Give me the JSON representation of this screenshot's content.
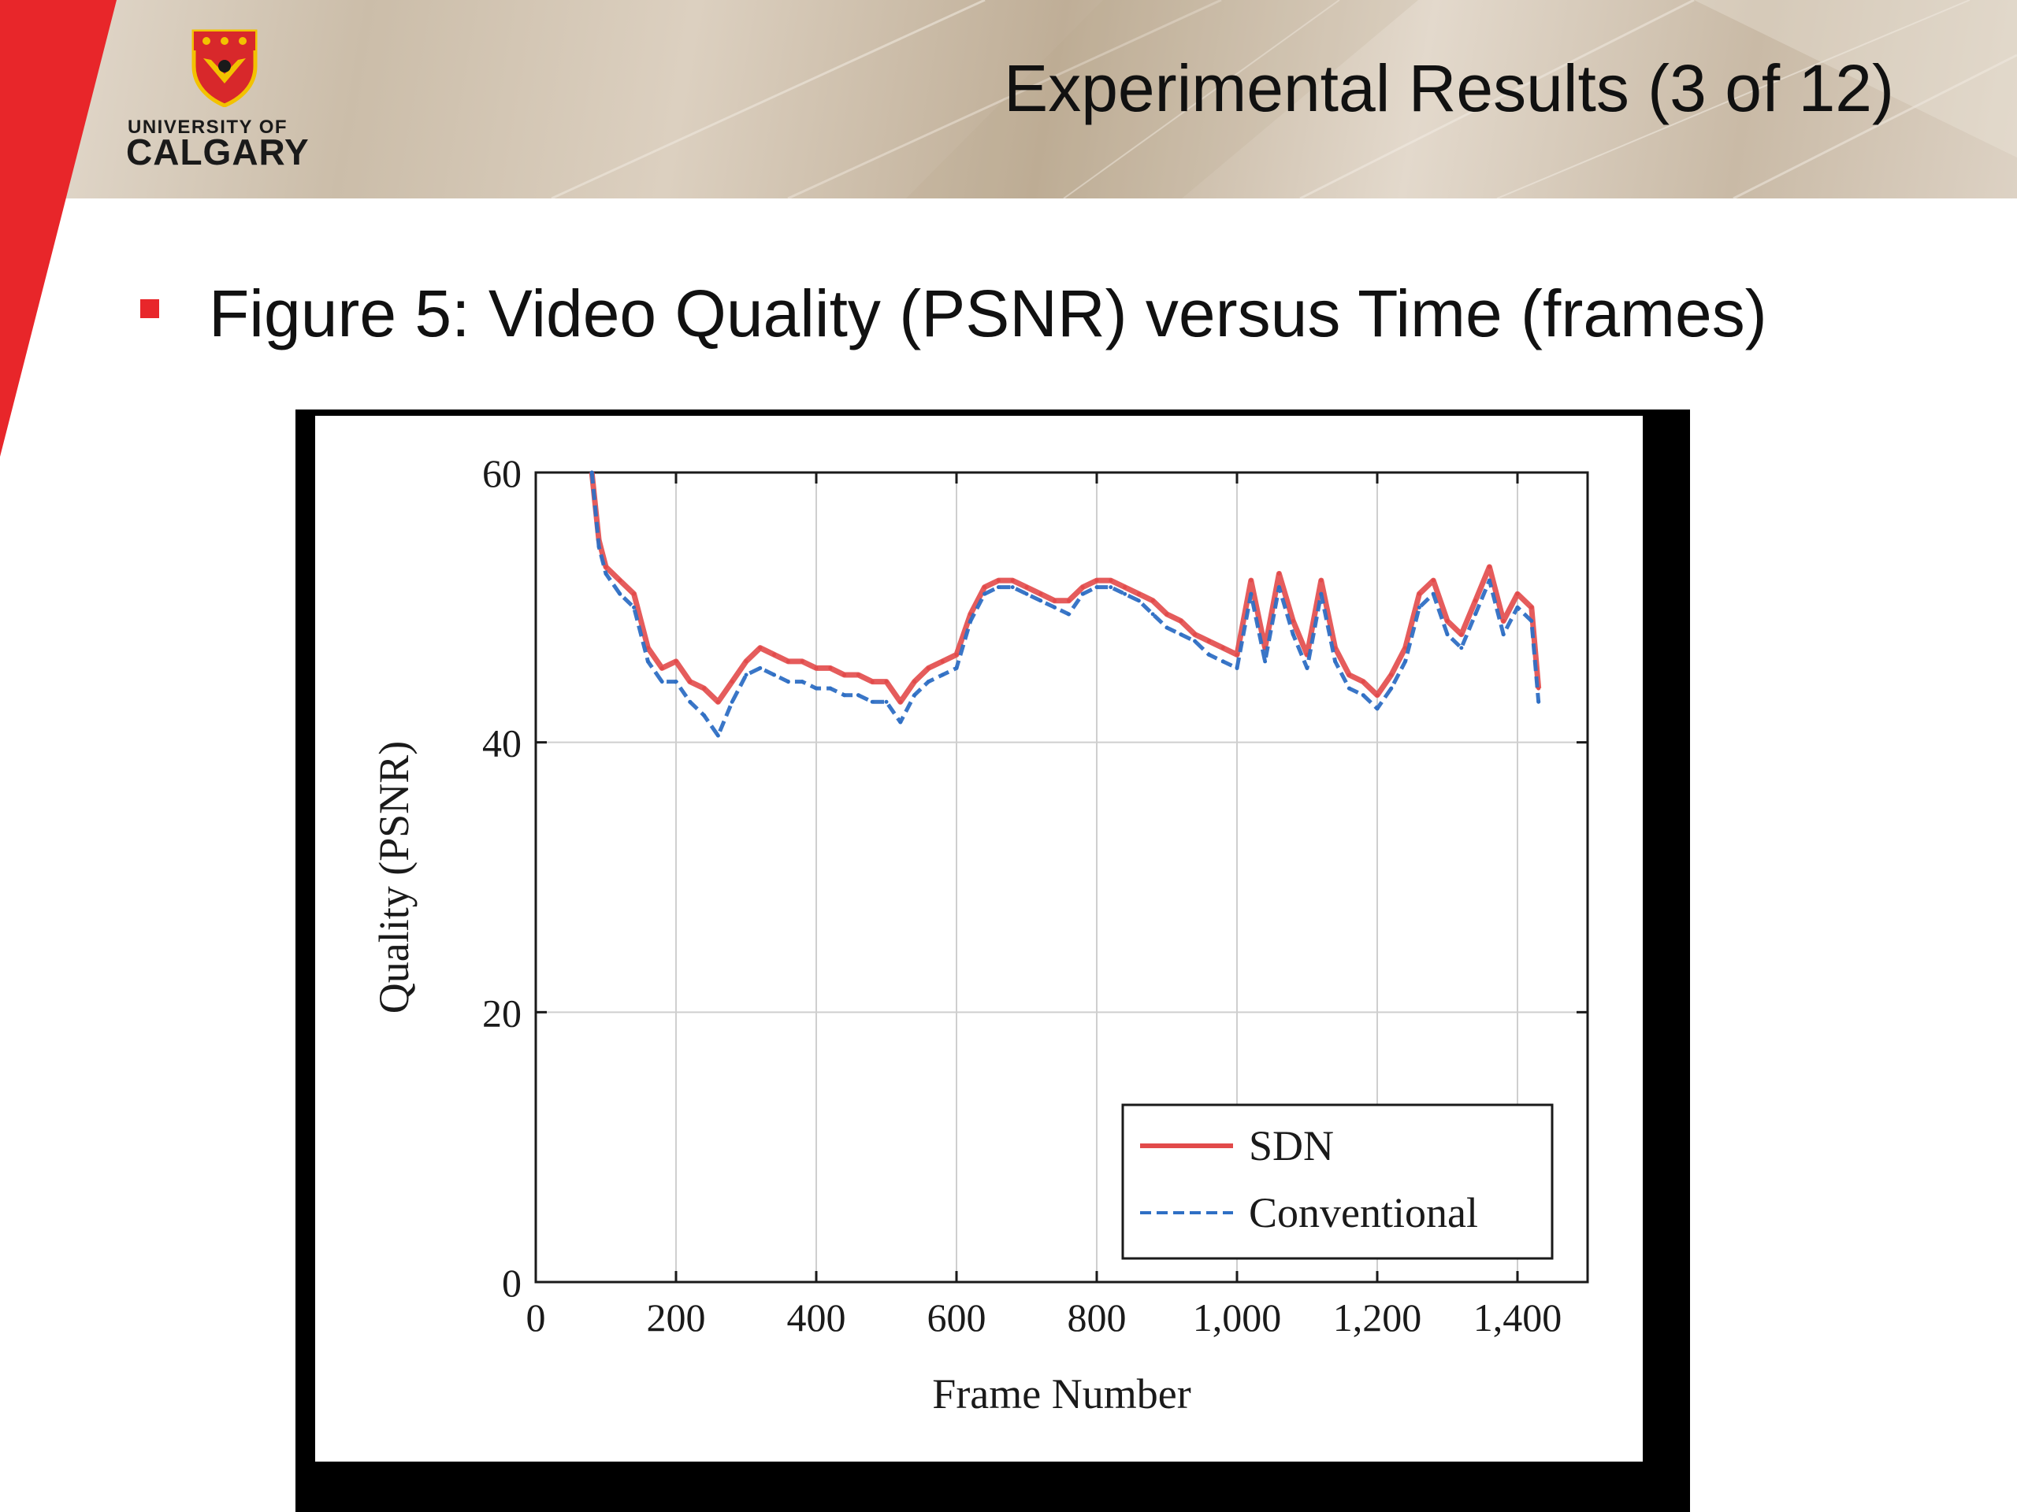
{
  "header": {
    "logo_line1": "UNIVERSITY OF",
    "logo_line2": "CALGARY",
    "title": "Experimental Results (3 of 12)"
  },
  "bullet": {
    "text": "Figure 5: Video Quality (PSNR) versus Time (frames)"
  },
  "colors": {
    "accent_red": "#e8262a",
    "sdn_series": "#e24a4a",
    "conventional_series": "#2f6fc4"
  },
  "chart_data": {
    "type": "line",
    "title": "",
    "xlabel": "Frame Number",
    "ylabel": "Quality (PSNR)",
    "xlim": [
      0,
      1500
    ],
    "ylim": [
      0,
      60
    ],
    "x_ticks": [
      0,
      200,
      400,
      600,
      800,
      1000,
      1200,
      1400
    ],
    "x_tick_labels": [
      "0",
      "200",
      "400",
      "600",
      "800",
      "1,000",
      "1,200",
      "1,400"
    ],
    "y_ticks": [
      0,
      20,
      40,
      60
    ],
    "y_tick_labels": [
      "0",
      "20",
      "40",
      "60"
    ],
    "grid": true,
    "legend_position": "bottom-right",
    "series": [
      {
        "name": "SDN",
        "style": "solid",
        "color": "#e24a4a",
        "x": [
          80,
          90,
          100,
          120,
          140,
          160,
          180,
          200,
          220,
          240,
          260,
          280,
          300,
          320,
          340,
          360,
          380,
          400,
          420,
          440,
          460,
          480,
          500,
          520,
          540,
          560,
          580,
          600,
          620,
          640,
          660,
          680,
          700,
          720,
          740,
          760,
          780,
          800,
          820,
          840,
          860,
          880,
          900,
          920,
          940,
          960,
          980,
          1000,
          1020,
          1040,
          1060,
          1080,
          1100,
          1120,
          1140,
          1160,
          1180,
          1200,
          1220,
          1240,
          1260,
          1280,
          1300,
          1320,
          1340,
          1360,
          1380,
          1400,
          1420,
          1430
        ],
        "y": [
          60,
          55,
          53,
          52,
          51,
          47,
          45.5,
          46,
          44.5,
          44,
          43,
          44.5,
          46,
          47,
          46.5,
          46,
          46,
          45.5,
          45.5,
          45,
          45,
          44.5,
          44.5,
          43,
          44.5,
          45.5,
          46,
          46.5,
          49.5,
          51.5,
          52,
          52,
          51.5,
          51,
          50.5,
          50.5,
          51.5,
          52,
          52,
          51.5,
          51,
          50.5,
          49.5,
          49,
          48,
          47.5,
          47,
          46.5,
          52,
          47,
          52.5,
          49,
          46.5,
          52,
          47,
          45,
          44.5,
          43.5,
          45,
          47,
          51,
          52,
          49,
          48,
          50.5,
          53,
          49,
          51,
          50,
          44
        ]
      },
      {
        "name": "Conventional",
        "style": "dashed",
        "color": "#2f6fc4",
        "x": [
          80,
          90,
          100,
          120,
          140,
          160,
          180,
          200,
          220,
          240,
          260,
          280,
          300,
          320,
          340,
          360,
          380,
          400,
          420,
          440,
          460,
          480,
          500,
          520,
          540,
          560,
          580,
          600,
          620,
          640,
          660,
          680,
          700,
          720,
          740,
          760,
          780,
          800,
          820,
          840,
          860,
          880,
          900,
          920,
          940,
          960,
          980,
          1000,
          1020,
          1040,
          1060,
          1080,
          1100,
          1120,
          1140,
          1160,
          1180,
          1200,
          1220,
          1240,
          1260,
          1280,
          1300,
          1320,
          1340,
          1360,
          1380,
          1400,
          1420,
          1430
        ],
        "y": [
          60,
          54.5,
          52.5,
          51,
          50,
          46,
          44.5,
          44.5,
          43,
          42,
          40.5,
          43,
          45,
          45.5,
          45,
          44.5,
          44.5,
          44,
          44,
          43.5,
          43.5,
          43,
          43,
          41.5,
          43.5,
          44.5,
          45,
          45.5,
          49,
          51,
          51.5,
          51.5,
          51,
          50.5,
          50,
          49.5,
          51,
          51.5,
          51.5,
          51,
          50.5,
          49.5,
          48.5,
          48,
          47.5,
          46.5,
          46,
          45.5,
          51,
          46,
          51.5,
          48,
          45.5,
          51,
          46,
          44,
          43.5,
          42.5,
          44,
          46,
          50,
          51,
          48,
          47,
          49.5,
          52,
          48,
          50,
          49,
          43
        ]
      }
    ]
  }
}
